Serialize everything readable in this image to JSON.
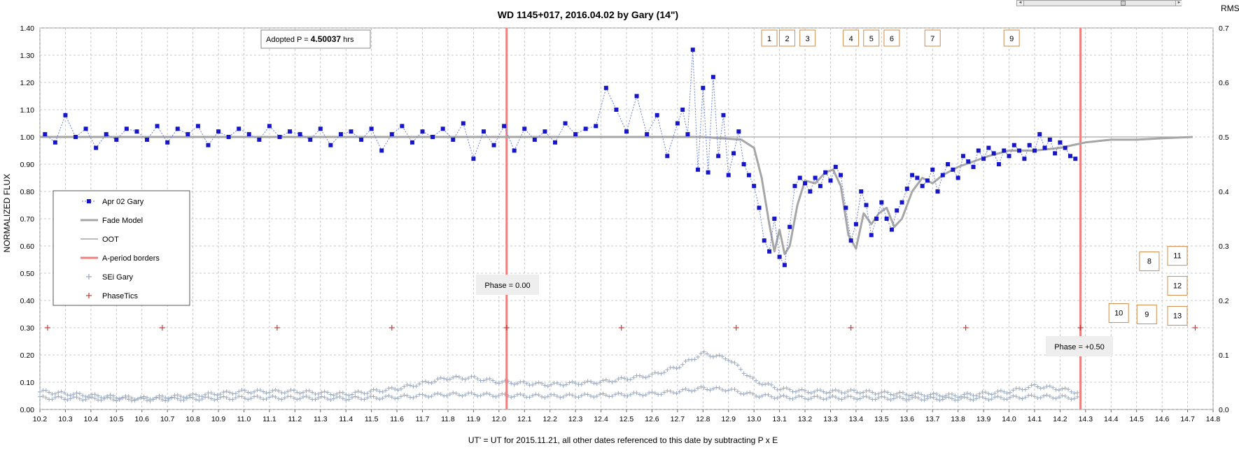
{
  "chart_data": {
    "type": "scatter",
    "title": "WD 1145+017, 2016.04.02 by Gary (14\")",
    "xlabel": "UT' = UT for 2015.11.21, all other dates referenced to this date by subtracting P x E",
    "ylabel": "NORMALIZED FLUX",
    "y2label": "RMS i",
    "xlim": [
      10.2,
      14.8
    ],
    "ylim": [
      0.0,
      1.4
    ],
    "y2lim": [
      0.0,
      0.7
    ],
    "grid": true,
    "legend_position": "left",
    "xticks": [
      "10.2",
      "10.3",
      "10.4",
      "10.5",
      "10.6",
      "10.7",
      "10.8",
      "10.9",
      "11.0",
      "11.1",
      "11.2",
      "11.3",
      "11.4",
      "11.5",
      "11.6",
      "11.7",
      "11.8",
      "11.9",
      "12.0",
      "12.1",
      "12.2",
      "12.3",
      "12.4",
      "12.5",
      "12.6",
      "12.7",
      "12.8",
      "12.9",
      "13.0",
      "13.1",
      "13.2",
      "13.3",
      "13.4",
      "13.5",
      "13.6",
      "13.7",
      "13.8",
      "13.9",
      "14.0",
      "14.1",
      "14.2",
      "14.3",
      "14.4",
      "14.5",
      "14.6",
      "14.7",
      "14.8"
    ],
    "yticks": [
      "0.00",
      "0.10",
      "0.20",
      "0.30",
      "0.40",
      "0.50",
      "0.60",
      "0.70",
      "0.80",
      "0.90",
      "1.00",
      "1.10",
      "1.20",
      "1.30",
      "1.40"
    ],
    "y2ticks": [
      "0.0",
      "0.1",
      "0.2",
      "0.3",
      "0.4",
      "0.5",
      "0.6",
      "0.7"
    ],
    "series": [
      {
        "name": "Apr 02 Gary",
        "color": "#1616c8",
        "x": [
          10.22,
          10.26,
          10.3,
          10.34,
          10.38,
          10.42,
          10.46,
          10.5,
          10.54,
          10.58,
          10.62,
          10.66,
          10.7,
          10.74,
          10.78,
          10.82,
          10.86,
          10.9,
          10.94,
          10.98,
          11.02,
          11.06,
          11.1,
          11.14,
          11.18,
          11.22,
          11.26,
          11.3,
          11.34,
          11.38,
          11.42,
          11.46,
          11.5,
          11.54,
          11.58,
          11.62,
          11.66,
          11.7,
          11.74,
          11.78,
          11.82,
          11.86,
          11.9,
          11.94,
          11.98,
          12.02,
          12.06,
          12.1,
          12.14,
          12.18,
          12.22,
          12.26,
          12.3,
          12.34,
          12.38,
          12.42,
          12.46,
          12.5,
          12.54,
          12.58,
          12.62,
          12.66,
          12.7,
          12.72,
          12.74,
          12.76,
          12.78,
          12.8,
          12.82,
          12.84,
          12.86,
          12.88,
          12.9,
          12.92,
          12.94,
          12.96,
          12.98,
          13.0,
          13.02,
          13.04,
          13.06,
          13.08,
          13.1,
          13.12,
          13.14,
          13.16,
          13.18,
          13.2,
          13.22,
          13.24,
          13.26,
          13.28,
          13.3,
          13.32,
          13.34,
          13.36,
          13.38,
          13.4,
          13.42,
          13.44,
          13.46,
          13.48,
          13.5,
          13.52,
          13.54,
          13.56,
          13.58,
          13.6,
          13.62,
          13.64,
          13.66,
          13.68,
          13.7,
          13.72,
          13.74,
          13.76,
          13.78,
          13.8,
          13.82,
          13.84,
          13.86,
          13.88,
          13.9,
          13.92,
          13.94,
          13.96,
          13.98,
          14.0,
          14.02,
          14.04,
          14.06,
          14.08,
          14.1,
          14.12,
          14.14,
          14.16,
          14.18,
          14.2,
          14.22,
          14.24,
          14.26
        ],
        "y": [
          1.01,
          0.98,
          1.08,
          1.0,
          1.03,
          0.96,
          1.01,
          0.99,
          1.03,
          1.02,
          0.99,
          1.04,
          0.98,
          1.03,
          1.01,
          1.04,
          0.97,
          1.02,
          1.0,
          1.03,
          1.01,
          0.99,
          1.04,
          1.0,
          1.02,
          1.01,
          0.99,
          1.03,
          0.97,
          1.01,
          1.02,
          0.99,
          1.03,
          0.95,
          1.01,
          1.04,
          0.98,
          1.02,
          1.0,
          1.03,
          0.99,
          1.05,
          0.92,
          1.02,
          0.97,
          1.04,
          0.95,
          1.03,
          0.99,
          1.02,
          0.98,
          1.05,
          1.01,
          1.03,
          1.04,
          1.18,
          1.1,
          1.02,
          1.15,
          1.01,
          1.08,
          0.93,
          1.05,
          1.1,
          1.01,
          1.32,
          0.88,
          1.18,
          0.87,
          1.22,
          0.93,
          1.08,
          0.86,
          0.94,
          1.02,
          0.9,
          0.86,
          0.82,
          0.74,
          0.62,
          0.58,
          0.7,
          0.56,
          0.53,
          0.67,
          0.82,
          0.85,
          0.83,
          0.8,
          0.85,
          0.82,
          0.87,
          0.84,
          0.89,
          0.86,
          0.74,
          0.62,
          0.68,
          0.8,
          0.75,
          0.64,
          0.7,
          0.76,
          0.7,
          0.66,
          0.73,
          0.76,
          0.81,
          0.86,
          0.85,
          0.82,
          0.84,
          0.88,
          0.8,
          0.86,
          0.9,
          0.88,
          0.85,
          0.93,
          0.91,
          0.89,
          0.95,
          0.92,
          0.96,
          0.94,
          0.9,
          0.95,
          0.93,
          0.97,
          0.95,
          0.92,
          0.97,
          0.95,
          1.01,
          0.96,
          0.99,
          0.94,
          0.98,
          0.96,
          0.93,
          0.92
        ]
      },
      {
        "name": "Fade Model",
        "color": "#a6a6a6",
        "x": [
          10.2,
          10.6,
          11.0,
          11.5,
          12.0,
          12.5,
          12.8,
          12.95,
          13.0,
          13.03,
          13.06,
          13.08,
          13.1,
          13.12,
          13.14,
          13.17,
          13.2,
          13.24,
          13.28,
          13.31,
          13.34,
          13.37,
          13.4,
          13.43,
          13.46,
          13.49,
          13.52,
          13.55,
          13.58,
          13.62,
          13.66,
          13.7,
          13.74,
          13.8,
          13.86,
          13.92,
          14.0,
          14.1,
          14.2,
          14.3,
          14.4,
          14.5,
          14.6,
          14.72
        ],
        "y": [
          1.0,
          1.0,
          1.0,
          1.0,
          1.0,
          1.0,
          1.0,
          0.99,
          0.96,
          0.85,
          0.68,
          0.58,
          0.66,
          0.57,
          0.6,
          0.75,
          0.84,
          0.83,
          0.87,
          0.88,
          0.82,
          0.64,
          0.59,
          0.72,
          0.68,
          0.72,
          0.74,
          0.67,
          0.7,
          0.8,
          0.85,
          0.83,
          0.86,
          0.89,
          0.91,
          0.93,
          0.95,
          0.95,
          0.96,
          0.98,
          0.99,
          0.99,
          0.995,
          1.0
        ]
      },
      {
        "name": "OOT",
        "color": "#a6a6a6",
        "x": [
          10.2,
          14.72
        ],
        "y": [
          1.0,
          1.0
        ]
      },
      {
        "name": "A-period borders",
        "color": "#f08080",
        "x": [
          12.03,
          14.28
        ]
      },
      {
        "name": "SEi  Gary",
        "color": "#9aa8bd",
        "x": [
          10.2,
          10.4,
          10.6,
          10.8,
          11.0,
          11.2,
          11.4,
          11.6,
          11.8,
          11.9,
          12.0,
          12.2,
          12.4,
          12.6,
          12.7,
          12.8,
          12.9,
          13.0,
          13.1,
          13.2,
          13.4,
          13.6,
          13.8,
          14.0,
          14.1,
          14.2,
          14.28
        ],
        "y": [
          0.06,
          0.045,
          0.035,
          0.045,
          0.06,
          0.06,
          0.05,
          0.07,
          0.11,
          0.11,
          0.095,
          0.085,
          0.095,
          0.12,
          0.15,
          0.2,
          0.18,
          0.1,
          0.07,
          0.06,
          0.06,
          0.05,
          0.045,
          0.06,
          0.08,
          0.07,
          0.055
        ]
      },
      {
        "name": "PhaseTics",
        "color": "#c04040",
        "x": [
          10.23,
          10.68,
          11.13,
          11.58,
          12.03,
          12.48,
          12.93,
          13.38,
          13.83,
          14.28,
          14.73
        ],
        "y": [
          0.3,
          0.3,
          0.3,
          0.3,
          0.3,
          0.3,
          0.3,
          0.3,
          0.3,
          0.3,
          0.3
        ]
      }
    ],
    "annotations": {
      "adopted_prefix": "Adopted P = ",
      "adopted_value": "4.50037",
      "adopted_suffix": " hrs",
      "phase0": "Phase = 0.00",
      "phase50": "Phase = +0.50",
      "top_boxes": [
        {
          "label": "1",
          "x": 13.06
        },
        {
          "label": "2",
          "x": 13.13
        },
        {
          "label": "3",
          "x": 13.21
        },
        {
          "label": "4",
          "x": 13.38
        },
        {
          "label": "5",
          "x": 13.46
        },
        {
          "label": "6",
          "x": 13.54
        },
        {
          "label": "7",
          "x": 13.7
        },
        {
          "label": "9",
          "x": 14.01
        }
      ],
      "right_boxes": [
        {
          "label": "8",
          "x": 14.55,
          "y": 0.545
        },
        {
          "label": "11",
          "x": 14.66,
          "y": 0.565
        },
        {
          "label": "12",
          "x": 14.66,
          "y": 0.455
        },
        {
          "label": "10",
          "x": 14.43,
          "y": 0.355
        },
        {
          "label": "9",
          "x": 14.54,
          "y": 0.35
        },
        {
          "label": "13",
          "x": 14.66,
          "y": 0.345
        }
      ]
    }
  }
}
